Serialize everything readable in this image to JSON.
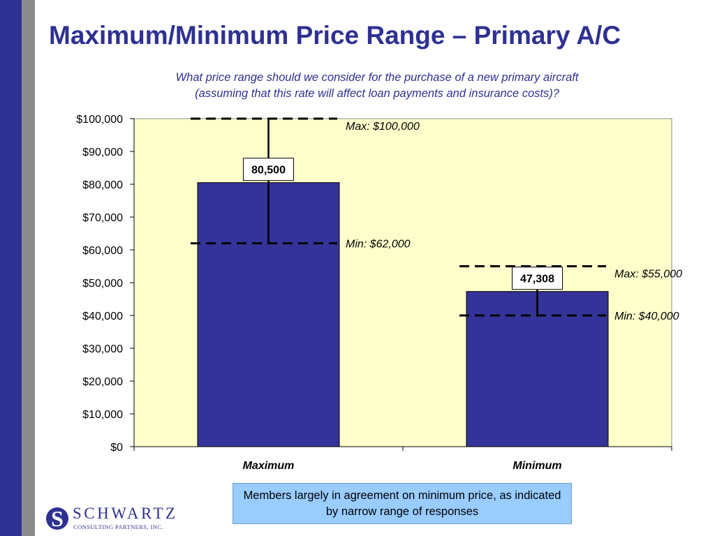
{
  "slide": {
    "title": "Maximum/Minimum Price Range – Primary A/C",
    "subtitle_line1": "What price range should we consider for the purchase of a new primary aircraft",
    "subtitle_line2": "(assuming that this rate will affect loan payments and insurance costs)?",
    "note": "Members largely in agreement on minimum price, as indicated by narrow range of responses"
  },
  "logo": {
    "name": "SCHWARTZ",
    "subtitle": "CONSULTING PARTNERS, INC."
  },
  "colors": {
    "bar": "#333399",
    "plot_bg": "#ffffcc",
    "title": "#2e3192",
    "note_bg": "#99ccff"
  },
  "chart_data": {
    "type": "bar",
    "categories": [
      "Maximum",
      "Minimum"
    ],
    "values": [
      80500,
      47308
    ],
    "data_labels": [
      "80,500",
      "47,308"
    ],
    "ranges": [
      {
        "max": 100000,
        "min": 62000,
        "max_label": "Max: $100,000",
        "min_label": "Min: $62,000"
      },
      {
        "max": 55000,
        "min": 40000,
        "max_label": "Max: $55,000",
        "min_label": "Min: $40,000"
      }
    ],
    "ylim": [
      0,
      100000
    ],
    "yticks": [
      0,
      10000,
      20000,
      30000,
      40000,
      50000,
      60000,
      70000,
      80000,
      90000,
      100000
    ],
    "ytick_labels": [
      "$0",
      "$10,000",
      "$20,000",
      "$30,000",
      "$40,000",
      "$50,000",
      "$60,000",
      "$70,000",
      "$80,000",
      "$90,000",
      "$100,000"
    ],
    "grid": false,
    "legend": "none"
  }
}
